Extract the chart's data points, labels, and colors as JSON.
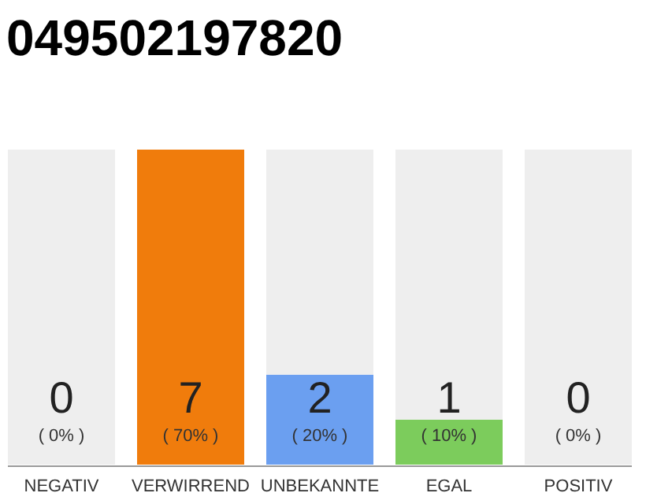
{
  "chart_data": {
    "type": "bar",
    "title": "049502197820",
    "stacked": true,
    "categories": [
      "NEGATIV",
      "VERWIRREND",
      "UNBEKANNTE",
      "EGAL",
      "POSITIV"
    ],
    "series": [
      {
        "colors": [
          "#f07c0c",
          "#f07c0c",
          "#6b9ff0",
          "#7ccc5c",
          "#f07c0c"
        ],
        "values": [
          0,
          7,
          2,
          1,
          0
        ],
        "value_labels": [
          null,
          "7",
          "2",
          "1",
          null
        ]
      },
      {
        "color": "#eeeeee",
        "values": [
          7,
          0,
          5,
          6,
          7
        ]
      }
    ],
    "ylim": [
      0,
      7
    ],
    "tick_labels": "x",
    "annotations": [
      "( 0% )",
      "( 70% )",
      "( 20% )",
      "( 10% )",
      "( 0% )",
      {
        "text": "0",
        "x": "NEGATIV",
        "y": 0
      },
      {
        "text": "0",
        "x": "POSITIV",
        "y": 0
      }
    ]
  }
}
